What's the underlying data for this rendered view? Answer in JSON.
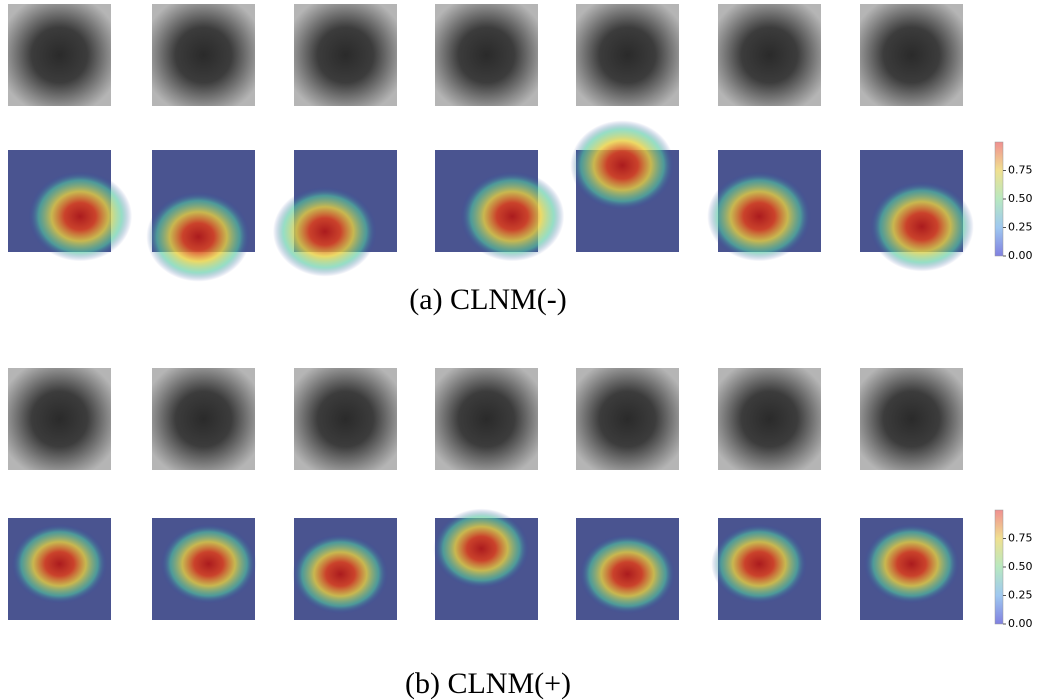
{
  "panels": [
    {
      "caption": "(a) CLNM(-)",
      "colorbar": {
        "range": [
          0,
          1
        ],
        "ticks": [
          {
            "value": 0,
            "label": "0.00"
          },
          {
            "value": 0.25,
            "label": "0.25"
          },
          {
            "value": 0.5,
            "label": "0.50"
          },
          {
            "value": 0.75,
            "label": "0.75"
          }
        ]
      }
    },
    {
      "caption": "(b) CLNM(+)",
      "colorbar": {
        "range": [
          0,
          1
        ],
        "ticks": [
          {
            "value": 0,
            "label": "0.00"
          },
          {
            "value": 0.25,
            "label": "0.25"
          },
          {
            "value": 0.5,
            "label": "0.50"
          },
          {
            "value": 0.75,
            "label": "0.75"
          }
        ]
      }
    }
  ]
}
